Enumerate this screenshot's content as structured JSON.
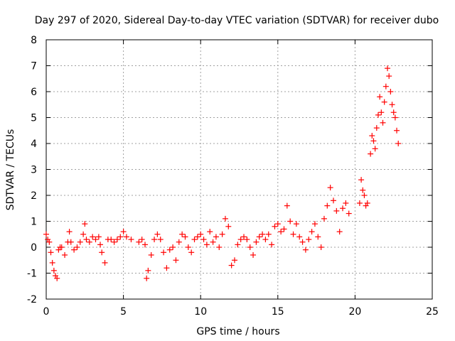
{
  "chart_data": {
    "type": "scatter",
    "title": "Day 297 of 2020, Sidereal Day-to-day VTEC variation (SDTVAR) for receiver dubo",
    "xlabel": "GPS time / hours",
    "ylabel": "SDTVAR / TECUs",
    "xlim": [
      0,
      25
    ],
    "ylim": [
      -2,
      8
    ],
    "xticks": [
      0,
      5,
      10,
      15,
      20,
      25
    ],
    "yticks": [
      -2,
      -1,
      0,
      1,
      2,
      3,
      4,
      5,
      6,
      7,
      8
    ],
    "grid": true,
    "marker": "+",
    "color": "#ff0000",
    "series": [
      {
        "name": "SDTVAR",
        "x": [
          0.0,
          0.1,
          0.2,
          0.3,
          0.4,
          0.5,
          0.6,
          0.7,
          0.8,
          0.9,
          1.0,
          1.2,
          1.4,
          1.5,
          1.6,
          1.8,
          2.0,
          2.2,
          2.4,
          2.5,
          2.6,
          2.8,
          3.0,
          3.2,
          3.4,
          3.5,
          3.6,
          3.8,
          4.0,
          4.2,
          4.4,
          4.6,
          4.8,
          5.0,
          5.2,
          5.5,
          6.0,
          6.2,
          6.4,
          6.5,
          6.6,
          6.8,
          7.0,
          7.2,
          7.4,
          7.6,
          7.8,
          8.0,
          8.2,
          8.4,
          8.6,
          8.8,
          9.0,
          9.2,
          9.4,
          9.6,
          9.8,
          10.0,
          10.2,
          10.4,
          10.6,
          10.8,
          11.0,
          11.2,
          11.4,
          11.6,
          11.8,
          12.0,
          12.2,
          12.4,
          12.6,
          12.8,
          13.0,
          13.2,
          13.4,
          13.6,
          13.8,
          14.0,
          14.2,
          14.4,
          14.6,
          14.8,
          15.0,
          15.2,
          15.4,
          15.6,
          15.8,
          16.0,
          16.2,
          16.4,
          16.6,
          16.8,
          17.0,
          17.2,
          17.4,
          17.6,
          17.8,
          18.0,
          18.2,
          18.4,
          18.6,
          18.8,
          19.0,
          19.2,
          19.4,
          19.6,
          20.3,
          20.4,
          20.5,
          20.6,
          20.7,
          20.8,
          21.0,
          21.1,
          21.2,
          21.3,
          21.4,
          21.5,
          21.6,
          21.7,
          21.8,
          21.9,
          22.0,
          22.1,
          22.2,
          22.3,
          22.4,
          22.5,
          22.6,
          22.7,
          22.8
        ],
        "y": [
          0.5,
          0.3,
          0.2,
          -0.2,
          -0.6,
          -0.9,
          -1.1,
          -1.2,
          -0.1,
          0.0,
          0.0,
          -0.3,
          0.2,
          0.6,
          0.2,
          -0.1,
          0.0,
          0.2,
          0.5,
          0.9,
          0.3,
          0.2,
          0.4,
          0.3,
          0.4,
          0.1,
          -0.2,
          -0.6,
          0.3,
          0.3,
          0.2,
          0.3,
          0.4,
          0.6,
          0.4,
          0.3,
          0.2,
          0.3,
          0.1,
          -1.2,
          -0.9,
          -0.3,
          0.3,
          0.5,
          0.3,
          -0.2,
          -0.8,
          -0.1,
          0.0,
          -0.5,
          0.2,
          0.5,
          0.4,
          0.0,
          -0.2,
          0.3,
          0.4,
          0.5,
          0.3,
          0.1,
          0.6,
          0.2,
          0.4,
          0.0,
          0.5,
          1.1,
          0.8,
          -0.7,
          -0.5,
          0.1,
          0.3,
          0.4,
          0.3,
          0.0,
          -0.3,
          0.2,
          0.4,
          0.5,
          0.3,
          0.5,
          0.1,
          0.8,
          0.9,
          0.6,
          0.7,
          1.6,
          1.0,
          0.5,
          0.9,
          0.4,
          0.2,
          -0.1,
          0.3,
          0.6,
          0.9,
          0.4,
          0.0,
          1.1,
          1.6,
          2.3,
          1.8,
          1.4,
          0.6,
          1.5,
          1.7,
          1.3,
          1.7,
          2.6,
          2.2,
          2.0,
          1.6,
          1.7,
          3.6,
          4.3,
          4.1,
          3.8,
          4.6,
          5.1,
          5.8,
          5.2,
          4.8,
          5.6,
          6.2,
          6.9,
          6.6,
          6.0,
          5.5,
          5.2,
          5.0,
          4.5,
          4.0
        ]
      }
    ]
  }
}
